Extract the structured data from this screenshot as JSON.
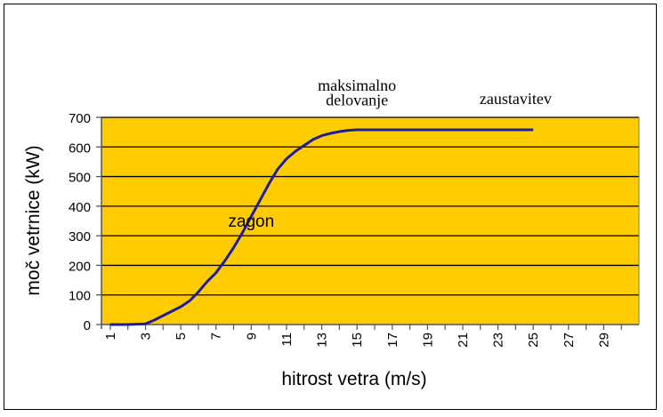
{
  "chart_data": {
    "type": "line",
    "xlabel": "hitrost vetra  (m/s)",
    "ylabel": "moč vetrnice  (kW)",
    "xlim": [
      0.5,
      31
    ],
    "ylim": [
      0,
      700
    ],
    "yticks": [
      0,
      100,
      200,
      300,
      400,
      500,
      600,
      700
    ],
    "xticks": [
      1,
      3,
      5,
      7,
      9,
      11,
      13,
      15,
      17,
      19,
      21,
      23,
      25,
      27,
      29
    ],
    "grid": "horizontal",
    "legend": "none",
    "colors": {
      "plot_background": "#FFCC00",
      "line": "#1F1F9A",
      "gridline": "#000000"
    },
    "series": [
      {
        "x": [
          1,
          2,
          3,
          3.5,
          4,
          4.5,
          5,
          5.5,
          6,
          6.5,
          7,
          7.5,
          8,
          8.5,
          9,
          9.5,
          10,
          10.5,
          11,
          11.5,
          12,
          12.5,
          13,
          13.5,
          14,
          14.5,
          15,
          16,
          17,
          18,
          19,
          20,
          21,
          22,
          23,
          24,
          25
        ],
        "y": [
          0,
          0,
          2,
          15,
          30,
          45,
          60,
          80,
          110,
          145,
          175,
          215,
          260,
          310,
          365,
          420,
          475,
          525,
          560,
          585,
          605,
          625,
          638,
          646,
          652,
          656,
          658,
          658,
          658,
          658,
          658,
          658,
          658,
          658,
          658,
          658,
          658
        ]
      }
    ],
    "annotations": [
      {
        "text": "zagon",
        "x": 9,
        "y": 330
      },
      {
        "text": "maksimalno",
        "x": 15,
        "y": 790
      },
      {
        "text": "delovanje",
        "x": 15,
        "y": 740
      },
      {
        "text": "zaustavitev",
        "x": 24,
        "y": 745
      }
    ]
  }
}
